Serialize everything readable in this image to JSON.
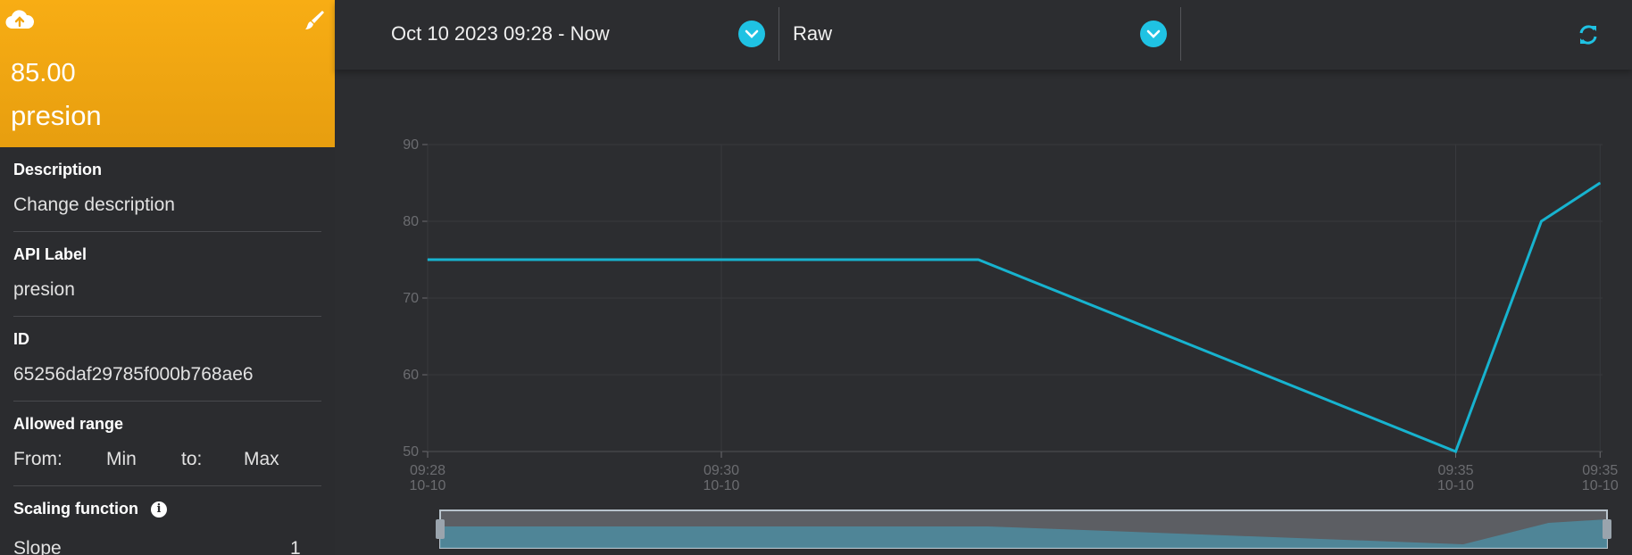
{
  "variable": {
    "value": "85.00",
    "name": "presion"
  },
  "properties": {
    "description_label": "Description",
    "description_value": "Change description",
    "api_label_label": "API Label",
    "api_label_value": "presion",
    "id_label": "ID",
    "id_value": "65256daf29785f000b768ae6",
    "range_label": "Allowed range",
    "range_from_label": "From:",
    "range_from_value": "Min",
    "range_to_label": "to:",
    "range_to_value": "Max",
    "scaling_label": "Scaling function",
    "slope_label": "Slope",
    "slope_value": "1"
  },
  "toolbar": {
    "date_range": "Oct 10 2023 09:28 - Now",
    "aggregation": "Raw"
  },
  "colors": {
    "accent": "#1fc2e3",
    "card": "#f8ad14",
    "line": "#17b3cf"
  },
  "icons": {
    "upload": "cloud-upload-icon",
    "edit": "brush-icon",
    "info": "info-icon",
    "chevron": "chevron-down-icon",
    "refresh": "refresh-icon"
  },
  "chart_data": {
    "type": "line",
    "x": [
      "09:28",
      "09:31:45",
      "09:35:00",
      "09:35:35",
      "09:35:59"
    ],
    "series": [
      {
        "values": [
          75,
          75,
          50,
          80,
          85
        ]
      }
    ],
    "y_ticks": [
      50,
      60,
      70,
      80,
      90
    ],
    "ylim": [
      50,
      90
    ],
    "x_ticks": [
      {
        "time": "09:28",
        "date": "10-10"
      },
      {
        "time": "09:30",
        "date": "10-10"
      },
      {
        "time": "09:35",
        "date": "10-10"
      },
      {
        "time": "09:35",
        "date": "10-10"
      }
    ],
    "grid": true
  }
}
